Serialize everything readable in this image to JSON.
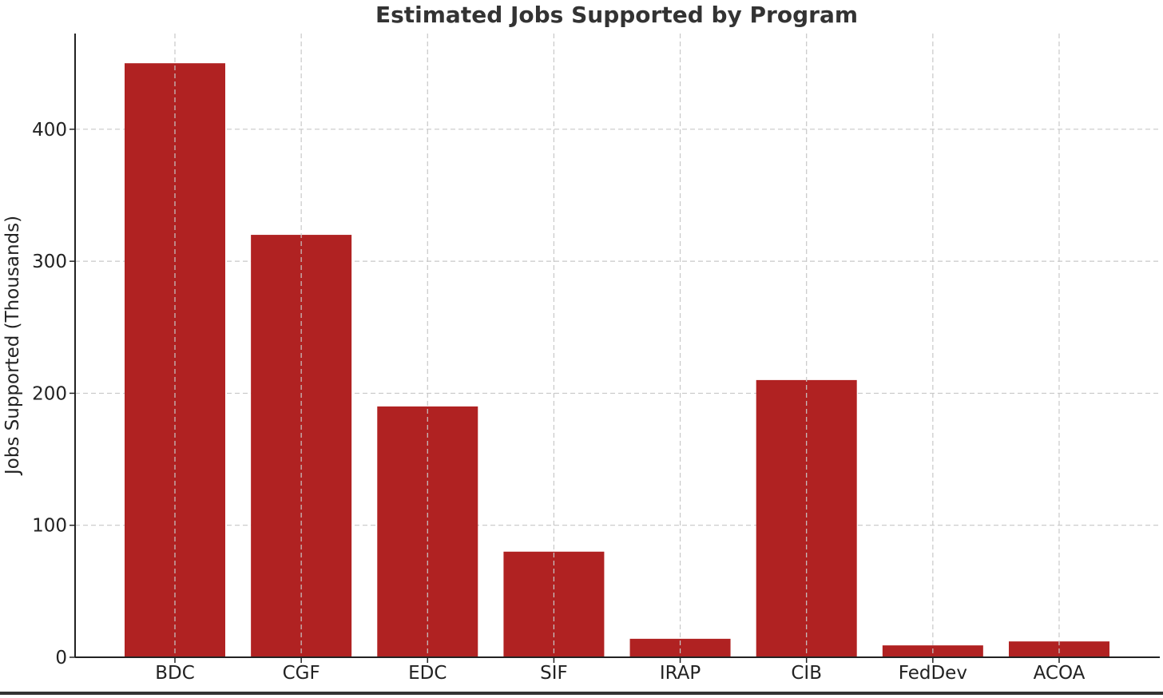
{
  "colors": {
    "bar": "#b02222",
    "title": "#333333",
    "grid": "#c8c8c8",
    "axis": "#222222"
  },
  "chart_data": {
    "type": "bar",
    "title": "Estimated Jobs Supported by Program",
    "xlabel": "",
    "ylabel": "Jobs Supported (Thousands)",
    "categories": [
      "BDC",
      "CGF",
      "EDC",
      "SIF",
      "IRAP",
      "CIB",
      "FedDev",
      "ACOA"
    ],
    "values": [
      450,
      320,
      190,
      80,
      14,
      210,
      9,
      12
    ],
    "ylim": [
      0,
      472.5
    ],
    "yticks": [
      0,
      100,
      200,
      300,
      400
    ],
    "grid": true,
    "legend": "none"
  }
}
